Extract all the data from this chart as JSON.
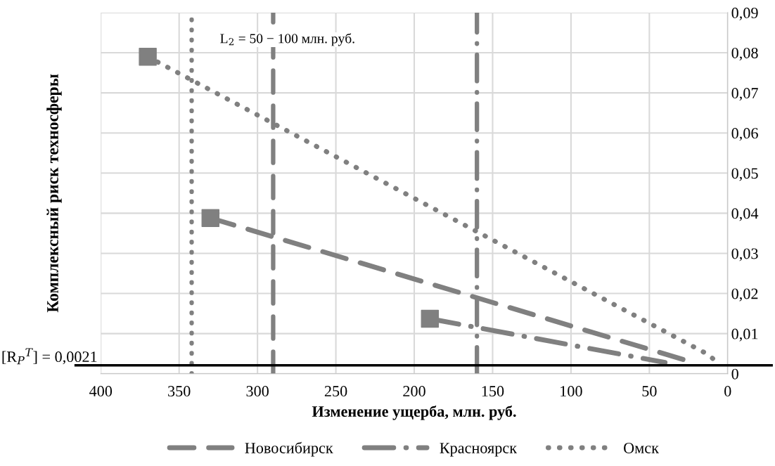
{
  "chart_data": {
    "type": "line",
    "xlabel": "Изменение ущерба, млн. руб.",
    "ylabel": "Комплексный риск техносферы",
    "xlim": [
      400,
      0
    ],
    "xticks": [
      400,
      350,
      300,
      250,
      200,
      150,
      100,
      50,
      0
    ],
    "ylim": [
      0,
      0.09
    ],
    "yticks": [
      {
        "value": 0,
        "label": "0"
      },
      {
        "value": 0.01,
        "label": "0,01"
      },
      {
        "value": 0.02,
        "label": "0,02"
      },
      {
        "value": 0.03,
        "label": "0,03"
      },
      {
        "value": 0.04,
        "label": "0,04"
      },
      {
        "value": 0.05,
        "label": "0,05"
      },
      {
        "value": 0.06,
        "label": "0,06"
      },
      {
        "value": 0.07,
        "label": "0,07"
      },
      {
        "value": 0.08,
        "label": "0,08"
      },
      {
        "value": 0.09,
        "label": "0,09"
      }
    ],
    "grid": true,
    "legend": "bottom",
    "series": [
      {
        "name": "Новосибирск",
        "color": "#808080",
        "line_style": "dashed",
        "x": [
          330,
          22
        ],
        "values": [
          0.0388,
          0.0028
        ]
      },
      {
        "name": "Красноярск",
        "color": "#808080",
        "line_style": "dashdot",
        "x": [
          190,
          40
        ],
        "values": [
          0.0137,
          0.0028
        ]
      },
      {
        "name": "Омск",
        "color": "#808080",
        "line_style": "dotted",
        "x": [
          370,
          13,
          5
        ],
        "values": [
          0.079,
          0.0049,
          0.0023
        ]
      },
      {
        "type": "scatter",
        "color": "#808080",
        "marker": "square",
        "x": [
          370,
          330,
          190
        ],
        "values": [
          0.079,
          0.0388,
          0.0137
        ]
      }
    ],
    "ref_lines": [
      {
        "axis": "y",
        "value": 0.0021,
        "label": "[R$_{Р}$$^{Т}$] = 0,0021",
        "color": "#000000",
        "line_style": "solid"
      },
      {
        "axis": "x",
        "value": 342,
        "color": "#808080",
        "line_style": "dotted"
      },
      {
        "axis": "x",
        "value": 290,
        "color": "#808080",
        "line_style": "dashed"
      },
      {
        "axis": "x",
        "value": 160,
        "color": "#808080",
        "line_style": "dashdot"
      }
    ],
    "annotations": [
      "L$_{2}$ = 50 − 100 млн. руб."
    ]
  }
}
